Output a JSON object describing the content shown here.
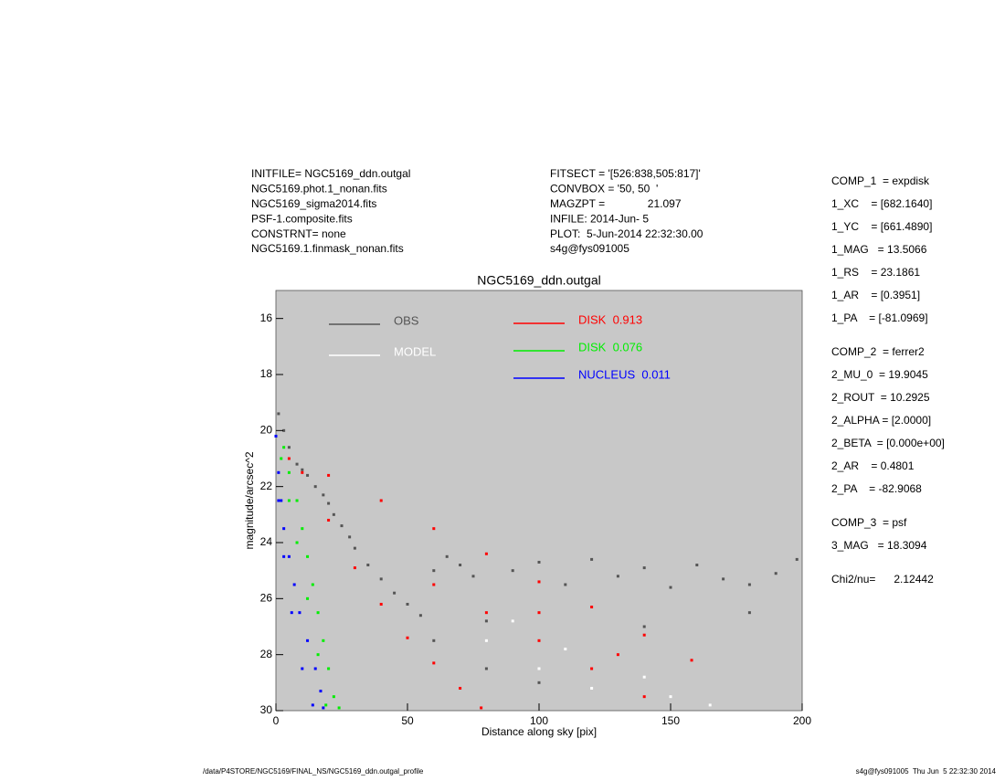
{
  "header": {
    "left": [
      "INITFILE= NGC5169_ddn.outgal",
      "NGC5169.phot.1_nonan.fits",
      "NGC5169_sigma2014.fits",
      "PSF-1.composite.fits",
      "CONSTRNT= none",
      "NGC5169.1.finmask_nonan.fits"
    ],
    "middle": [
      "FITSECT = '[526:838,505:817]'",
      "CONVBOX = '50, 50  '",
      "MAGZPT =              21.097",
      "INFILE: 2014-Jun- 5",
      "PLOT:  5-Jun-2014 22:32:30.00",
      "s4g@fys091005"
    ]
  },
  "parameters": [
    [
      "COMP_1  = expdisk",
      "1_XC    = [682.1640]",
      "1_YC    = [661.4890]",
      "1_MAG   = 13.5066",
      "1_RS    = 23.1861",
      "1_AR    = [0.3951]",
      "1_PA    = [-81.0969]"
    ],
    [
      "COMP_2  = ferrer2",
      "2_MU_0  = 19.9045",
      "2_ROUT  = 10.2925",
      "2_ALPHA = [2.0000]",
      "2_BETA  = [0.000e+00]",
      "2_AR    = 0.4801",
      "2_PA    = -82.9068"
    ],
    [
      "COMP_3  = psf",
      "3_MAG   = 18.3094"
    ],
    [
      "Chi2/nu=      2.12442"
    ]
  ],
  "footer": {
    "left": "/data/P4STORE/NGC5169/FINAL_NS/NGC5169_ddn.outgal_profile",
    "right": "s4g@fys091005  Thu Jun  5 22:32:30 2014"
  },
  "chart_data": {
    "type": "scatter",
    "title": "NGC5169_ddn.outgal",
    "x_label": "Distance along sky [pix]",
    "y_label": "magnitude/arcsec^2",
    "xlim": [
      0,
      200
    ],
    "ylim": [
      15,
      30
    ],
    "y_inverted": true,
    "xticks": [
      0,
      50,
      100,
      150,
      200
    ],
    "yticks": [
      16,
      18,
      20,
      22,
      24,
      26,
      28,
      30
    ],
    "background": "#c8c8c8",
    "series": [
      {
        "name": "OBS",
        "color": "#555555",
        "x": [
          1,
          3,
          5,
          8,
          10,
          12,
          15,
          18,
          20,
          22,
          25,
          28,
          30,
          35,
          40,
          45,
          50,
          55,
          60,
          65,
          70,
          75,
          80,
          90,
          100,
          110,
          120,
          130,
          140,
          150,
          160,
          170,
          180,
          190,
          198,
          60,
          80,
          100,
          140,
          180
        ],
        "values": [
          19.4,
          20.0,
          20.6,
          21.2,
          21.4,
          21.6,
          22.0,
          22.3,
          22.6,
          23.0,
          23.4,
          23.8,
          24.2,
          24.8,
          25.3,
          25.8,
          26.2,
          26.6,
          25.0,
          24.5,
          24.8,
          25.2,
          26.8,
          25.0,
          24.7,
          25.5,
          24.6,
          25.2,
          24.9,
          25.6,
          24.8,
          25.3,
          25.5,
          25.1,
          24.6,
          27.5,
          28.5,
          29.0,
          27.0,
          26.5
        ]
      },
      {
        "name": "MODEL",
        "color": "#ffffff",
        "x": [
          80,
          90,
          100,
          110,
          120,
          140,
          150,
          165
        ],
        "values": [
          27.5,
          26.8,
          28.5,
          27.8,
          29.2,
          28.8,
          29.5,
          29.8
        ]
      },
      {
        "name": "DISK  0.913",
        "color": "#ff0000",
        "x": [
          5,
          20,
          40,
          60,
          80,
          100,
          120,
          140,
          158,
          10,
          20,
          30,
          40,
          50,
          60,
          70,
          78,
          60,
          80,
          100,
          120,
          140,
          100,
          130
        ],
        "values": [
          21.0,
          21.6,
          22.5,
          23.5,
          24.4,
          25.4,
          26.3,
          27.3,
          28.2,
          21.5,
          23.2,
          24.9,
          26.2,
          27.4,
          28.3,
          29.2,
          29.9,
          25.5,
          26.5,
          27.5,
          28.5,
          29.5,
          26.5,
          28.0
        ]
      },
      {
        "name": "DISK  0.076",
        "color": "#00ee00",
        "x": [
          0,
          3,
          5,
          8,
          10,
          12,
          14,
          16,
          18,
          20,
          22,
          24,
          2,
          5,
          8,
          12,
          16,
          19
        ],
        "values": [
          20.2,
          20.6,
          21.5,
          22.5,
          23.5,
          24.5,
          25.5,
          26.5,
          27.5,
          28.5,
          29.5,
          29.9,
          21.0,
          22.5,
          24.0,
          26.0,
          28.0,
          29.8
        ]
      },
      {
        "name": "NUCLEUS  0.011",
        "color": "#0000ff",
        "x": [
          0,
          1,
          2,
          3,
          5,
          7,
          9,
          12,
          15,
          17,
          18,
          1,
          3,
          6,
          10,
          14
        ],
        "values": [
          20.2,
          21.5,
          22.5,
          23.5,
          24.5,
          25.5,
          26.5,
          27.5,
          28.5,
          29.3,
          29.9,
          22.5,
          24.5,
          26.5,
          28.5,
          29.8
        ]
      }
    ]
  }
}
